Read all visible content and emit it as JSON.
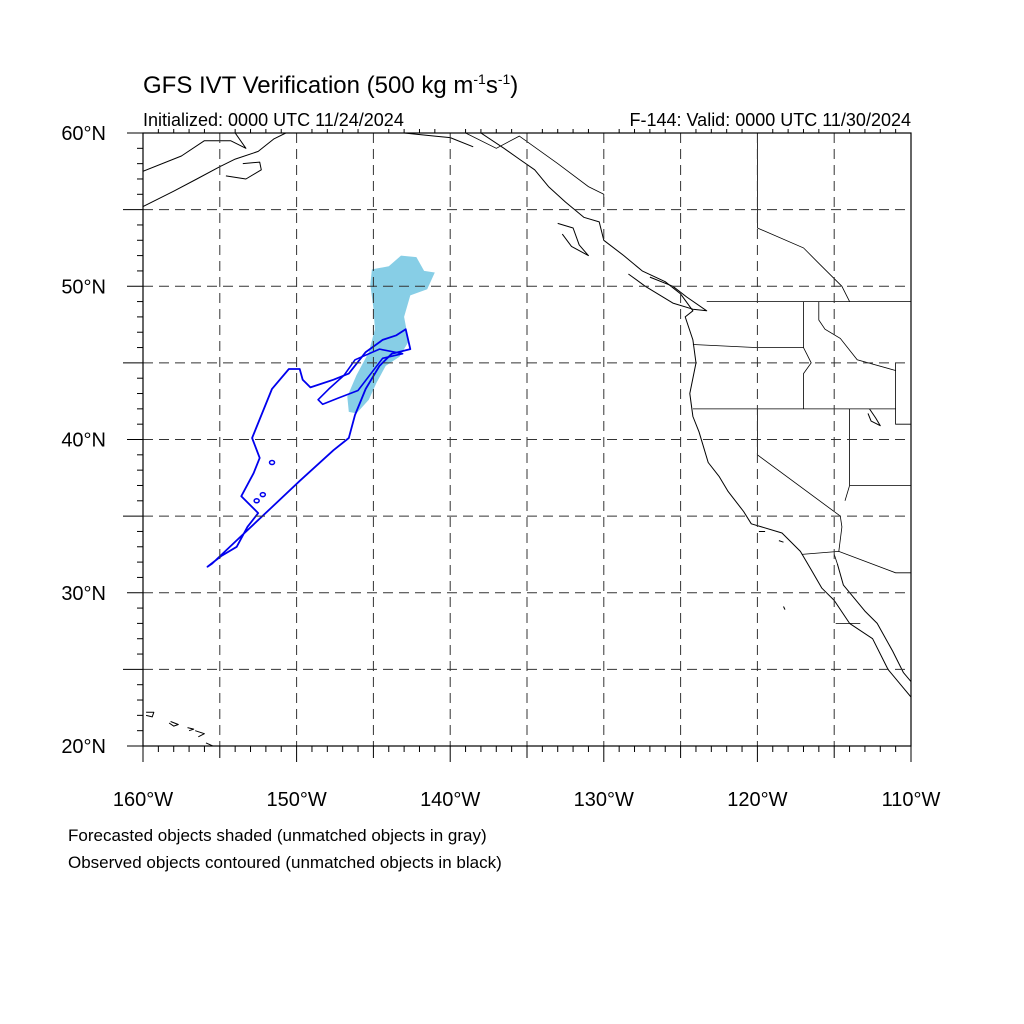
{
  "title": {
    "main": "GFS IVT Verification (500 kg m",
    "sup1": "-1",
    "mid": "s",
    "sup2": "-1",
    "end": ")"
  },
  "initialized": "Initialized: 0000 UTC 11/24/2024",
  "valid": "F-144: Valid: 0000 UTC 11/30/2024",
  "lat_labels": [
    "60°N",
    "50°N",
    "40°N",
    "30°N",
    "20°N"
  ],
  "lon_labels": [
    "160°W",
    "150°W",
    "140°W",
    "130°W",
    "120°W",
    "110°W"
  ],
  "captions": [
    "Forecasted objects shaded (unmatched objects in gray)",
    "Observed objects contoured (unmatched objects in black)"
  ],
  "map": {
    "extent": {
      "lon": [
        -160,
        -110
      ],
      "lat": [
        20,
        60
      ]
    },
    "gridlines": "dashed every 5 degrees",
    "colors": {
      "forecast_matched": "#87CEE6",
      "observed_matched": "#0000EE",
      "coast": "#000000"
    },
    "forecast_object": {
      "type": "matched",
      "polygon_lonlat": [
        [
          -142.2,
          51.9
        ],
        [
          -141.7,
          51.0
        ],
        [
          -141.0,
          50.9
        ],
        [
          -141.5,
          49.8
        ],
        [
          -142.6,
          49.4
        ],
        [
          -143.0,
          48.0
        ],
        [
          -142.7,
          46.4
        ],
        [
          -143.3,
          45.4
        ],
        [
          -144.2,
          44.8
        ],
        [
          -144.8,
          43.7
        ],
        [
          -145.3,
          42.6
        ],
        [
          -146.1,
          41.7
        ],
        [
          -146.6,
          41.8
        ],
        [
          -146.7,
          42.8
        ],
        [
          -146.1,
          44.2
        ],
        [
          -145.3,
          45.7
        ],
        [
          -144.9,
          47.2
        ],
        [
          -145.0,
          48.6
        ],
        [
          -145.2,
          50.1
        ],
        [
          -145.1,
          51.1
        ],
        [
          -144.0,
          51.3
        ],
        [
          -143.2,
          52.0
        ]
      ]
    },
    "observed_object": {
      "type": "matched",
      "outer_lonlat": [
        [
          -142.9,
          47.2
        ],
        [
          -142.6,
          45.9
        ],
        [
          -143.8,
          45.6
        ],
        [
          -144.6,
          44.8
        ],
        [
          -145.5,
          43.3
        ],
        [
          -146.2,
          41.6
        ],
        [
          -146.6,
          40.1
        ],
        [
          -147.6,
          39.3
        ],
        [
          -149.8,
          37.3
        ],
        [
          -151.7,
          35.5
        ],
        [
          -153.6,
          33.7
        ],
        [
          -155.5,
          31.9
        ],
        [
          -155.8,
          31.7
        ],
        [
          -154.9,
          32.4
        ],
        [
          -153.9,
          33.0
        ],
        [
          -153.2,
          34.3
        ],
        [
          -152.5,
          35.2
        ],
        [
          -153.6,
          36.3
        ],
        [
          -152.8,
          37.8
        ],
        [
          -152.4,
          38.8
        ],
        [
          -152.9,
          40.1
        ],
        [
          -151.6,
          43.3
        ],
        [
          -150.5,
          44.6
        ],
        [
          -149.8,
          44.6
        ],
        [
          -149.6,
          43.9
        ],
        [
          -149.1,
          43.4
        ],
        [
          -147.6,
          43.9
        ],
        [
          -146.6,
          44.3
        ],
        [
          -145.5,
          45.7
        ],
        [
          -144.4,
          46.5
        ],
        [
          -143.5,
          46.8
        ]
      ],
      "inner_lonlat": [
        [
          -148.3,
          42.3
        ],
        [
          -147.3,
          42.7
        ],
        [
          -146.0,
          43.2
        ],
        [
          -144.4,
          45.3
        ],
        [
          -143.1,
          45.6
        ],
        [
          -144.6,
          45.9
        ],
        [
          -146.2,
          45.2
        ],
        [
          -146.9,
          44.2
        ],
        [
          -147.9,
          43.3
        ],
        [
          -148.6,
          42.6
        ]
      ],
      "dots_lonlat": [
        [
          -151.6,
          38.5
        ],
        [
          -152.2,
          36.4
        ],
        [
          -152.6,
          36.0
        ]
      ]
    },
    "coastlines_lonlat": [
      [
        [
          -138,
          60
        ],
        [
          -136.5,
          59
        ],
        [
          -135.5,
          58.3
        ],
        [
          -134.5,
          57.6
        ],
        [
          -133.6,
          56.5
        ],
        [
          -132.5,
          55.5
        ],
        [
          -131.3,
          54.5
        ],
        [
          -130.3,
          54.2
        ],
        [
          -130.0,
          53.0
        ],
        [
          -128.7,
          52.0
        ],
        [
          -127.5,
          51.0
        ],
        [
          -126.0,
          50.3
        ],
        [
          -125.0,
          49.5
        ],
        [
          -124.2,
          48.4
        ],
        [
          -124.7,
          48.0
        ],
        [
          -124.2,
          46.5
        ],
        [
          -124.0,
          45.0
        ],
        [
          -124.4,
          43.0
        ],
        [
          -124.2,
          41.5
        ],
        [
          -123.8,
          40.5
        ],
        [
          -123.2,
          38.5
        ],
        [
          -122.5,
          37.6
        ],
        [
          -121.9,
          36.6
        ],
        [
          -120.9,
          35.3
        ],
        [
          -120.4,
          34.5
        ],
        [
          -118.4,
          33.9
        ],
        [
          -117.2,
          32.7
        ],
        [
          -116.5,
          31.5
        ],
        [
          -115.8,
          30.3
        ],
        [
          -115.0,
          29.5
        ],
        [
          -114.0,
          28.0
        ],
        [
          -112.5,
          27.0
        ],
        [
          -111.5,
          25.0
        ],
        [
          -110.5,
          23.8
        ],
        [
          -110,
          23.2
        ]
      ],
      [
        [
          -114.8,
          31.9
        ],
        [
          -114.4,
          30.5
        ],
        [
          -113.0,
          28.8
        ],
        [
          -112.2,
          28.0
        ],
        [
          -111.2,
          26.2
        ],
        [
          -110.5,
          24.8
        ],
        [
          -110,
          24.2
        ]
      ],
      [
        [
          -128.4,
          50.8
        ],
        [
          -127.3,
          50.0
        ],
        [
          -125.5,
          48.9
        ],
        [
          -124.2,
          48.5
        ],
        [
          -123.3,
          48.4
        ],
        [
          -124.6,
          49.3
        ],
        [
          -125.5,
          50.0
        ],
        [
          -127.0,
          50.6
        ]
      ],
      [
        [
          -133.0,
          54.1
        ],
        [
          -132.0,
          53.8
        ],
        [
          -131.6,
          52.7
        ],
        [
          -131.0,
          52.0
        ],
        [
          -132.1,
          52.6
        ],
        [
          -132.7,
          53.4
        ]
      ],
      [
        [
          -160,
          57.5
        ],
        [
          -157.5,
          58.5
        ],
        [
          -156.0,
          59.5
        ],
        [
          -154.3,
          59.5
        ],
        [
          -153.3,
          59.0
        ],
        [
          -154.0,
          60
        ]
      ],
      [
        [
          -160,
          55.2
        ],
        [
          -158.0,
          56.2
        ],
        [
          -156.5,
          57.0
        ],
        [
          -155.0,
          57.8
        ],
        [
          -154.0,
          58.3
        ],
        [
          -152.5,
          58.8
        ],
        [
          -151.5,
          59.6
        ],
        [
          -150.7,
          60
        ]
      ],
      [
        [
          -154.6,
          57.2
        ],
        [
          -153.3,
          57.0
        ],
        [
          -152.3,
          57.6
        ],
        [
          -152.4,
          58.1
        ],
        [
          -153.5,
          58.0
        ]
      ],
      [
        [
          -146.5,
          60
        ],
        [
          -145.0,
          60
        ],
        [
          -143.0,
          60
        ],
        [
          -141.0,
          59.8
        ],
        [
          -140.0,
          59.7
        ],
        [
          -138.5,
          59.1
        ]
      ],
      [
        [
          -110.6,
          60
        ],
        [
          -110,
          60.1
        ]
      ],
      [
        [
          -159.8,
          22.2
        ],
        [
          -159.3,
          22.2
        ],
        [
          -159.4,
          21.9
        ],
        [
          -159.8,
          22.0
        ]
      ],
      [
        [
          -158.2,
          21.6
        ],
        [
          -157.7,
          21.4
        ],
        [
          -158.0,
          21.3
        ],
        [
          -158.3,
          21.5
        ]
      ],
      [
        [
          -157.1,
          21.2
        ],
        [
          -156.7,
          21.1
        ],
        [
          -157.0,
          21.0
        ]
      ],
      [
        [
          -156.6,
          21.0
        ],
        [
          -156.0,
          20.8
        ],
        [
          -156.4,
          20.6
        ]
      ],
      [
        [
          -155.9,
          20.2
        ],
        [
          -155.0,
          19.8
        ],
        [
          -155.5,
          19.6
        ]
      ],
      [
        [
          -118.6,
          33.4
        ],
        [
          -118.3,
          33.3
        ]
      ],
      [
        [
          -119.9,
          34.0
        ],
        [
          -119.5,
          34.0
        ]
      ],
      [
        [
          -118.3,
          29.1
        ],
        [
          -118.2,
          28.9
        ]
      ],
      [
        [
          -112.7,
          42.0
        ],
        [
          -112.3,
          41.4
        ],
        [
          -112.0,
          40.9
        ],
        [
          -112.6,
          41.2
        ],
        [
          -112.8,
          41.7
        ]
      ]
    ],
    "borders_lonlat": [
      [
        [
          -123.3,
          49.0
        ],
        [
          -110,
          49.0
        ]
      ],
      [
        [
          -124.2,
          46.2
        ],
        [
          -120,
          46.0
        ],
        [
          -118.2,
          46.0
        ],
        [
          -117.0,
          46.0
        ],
        [
          -116.8,
          45.6
        ],
        [
          -116.5,
          45.0
        ],
        [
          -117.0,
          44.3
        ],
        [
          -117.0,
          42.0
        ]
      ],
      [
        [
          -124.2,
          42.0
        ],
        [
          -111.0,
          42.0
        ]
      ],
      [
        [
          -120.0,
          42.0
        ],
        [
          -120.0,
          39.0
        ],
        [
          -114.6,
          35.0
        ],
        [
          -114.5,
          34.3
        ],
        [
          -114.7,
          32.7
        ]
      ],
      [
        [
          -117.0,
          49.0
        ],
        [
          -117.0,
          46.0
        ]
      ],
      [
        [
          -116.0,
          49.0
        ],
        [
          -116.0,
          47.8
        ],
        [
          -115.6,
          47.2
        ],
        [
          -114.6,
          46.6
        ],
        [
          -113.5,
          45.2
        ],
        [
          -111.0,
          44.5
        ]
      ],
      [
        [
          -114.0,
          42.0
        ],
        [
          -114.0,
          37.0
        ],
        [
          -114.3,
          36.0
        ]
      ],
      [
        [
          -111.0,
          45.0
        ],
        [
          -111.0,
          41.0
        ],
        [
          -110,
          41.0
        ]
      ],
      [
        [
          -114.0,
          37.0
        ],
        [
          -110,
          37.0
        ]
      ],
      [
        [
          -117.1,
          32.5
        ],
        [
          -114.7,
          32.7
        ],
        [
          -111.0,
          31.3
        ],
        [
          -110,
          31.3
        ]
      ],
      [
        [
          -130.0,
          55.3
        ],
        [
          -130.0,
          56.0
        ],
        [
          -131.0,
          56.5
        ],
        [
          -133.0,
          58.0
        ],
        [
          -135.5,
          59.8
        ],
        [
          -137.0,
          59.0
        ],
        [
          -139.0,
          60
        ]
      ],
      [
        [
          -120.0,
          60
        ],
        [
          -120.0,
          53.8
        ],
        [
          -117.0,
          52.5
        ],
        [
          -116.0,
          51.5
        ],
        [
          -114.5,
          50.0
        ],
        [
          -114.0,
          49.0
        ]
      ],
      [
        [
          -115.0,
          32.5
        ],
        [
          -114.8,
          31.9
        ]
      ],
      [
        [
          -114.9,
          28.0
        ],
        [
          -113.3,
          28.0
        ]
      ]
    ]
  }
}
